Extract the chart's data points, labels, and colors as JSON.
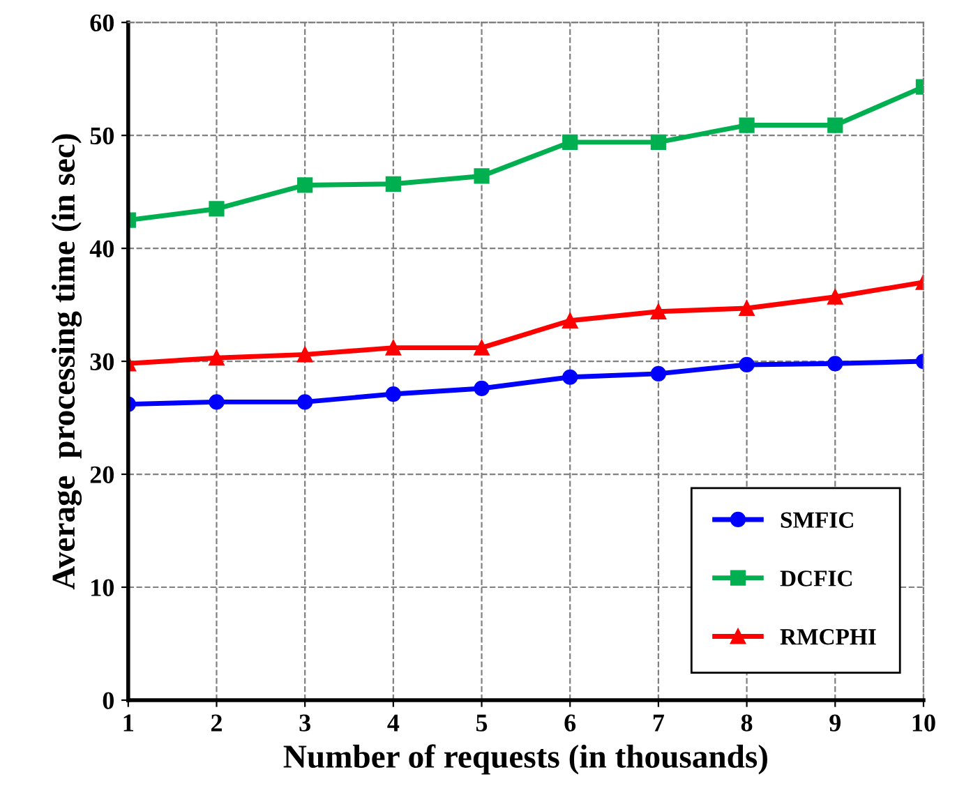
{
  "chart_data": {
    "type": "line",
    "xlabel": "Number of requests (in thousands)",
    "ylabel": "Average  processing time (in sec)",
    "x": [
      1,
      2,
      3,
      4,
      5,
      6,
      7,
      8,
      9,
      10
    ],
    "series": [
      {
        "name": "SMFIC",
        "color": "#0000ff",
        "marker": "circle",
        "values": [
          26.2,
          26.4,
          26.4,
          27.1,
          27.6,
          28.6,
          28.9,
          29.7,
          29.8,
          30.0
        ]
      },
      {
        "name": "DCFIC",
        "color": "#00b050",
        "marker": "square",
        "values": [
          42.5,
          43.5,
          45.6,
          45.7,
          46.4,
          49.4,
          49.4,
          50.9,
          50.9,
          54.3
        ]
      },
      {
        "name": "RMCPHI",
        "color": "#ff0000",
        "marker": "triangle",
        "values": [
          29.8,
          30.3,
          30.6,
          31.2,
          31.2,
          33.6,
          34.4,
          34.7,
          35.7,
          37.0
        ]
      }
    ],
    "xlim": [
      1,
      10
    ],
    "xticks": [
      1,
      2,
      3,
      4,
      5,
      6,
      7,
      8,
      9,
      10
    ],
    "ylim": [
      0,
      60
    ],
    "yticks": [
      0,
      10,
      20,
      30,
      40,
      50,
      60
    ],
    "grid": true,
    "legend": "bottom right",
    "line_style": "solid"
  }
}
